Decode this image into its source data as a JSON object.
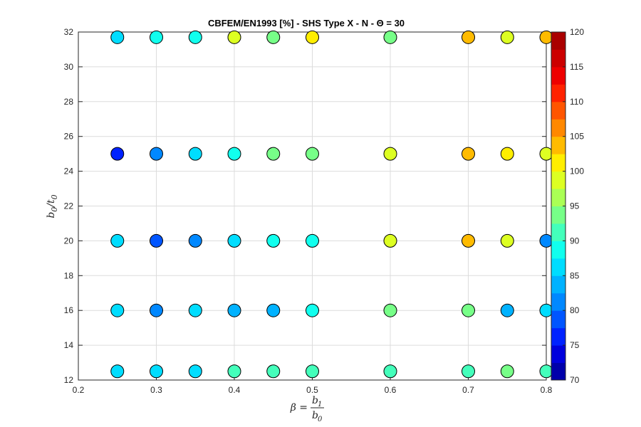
{
  "chart_data": {
    "type": "scatter",
    "title": "CBFEM/EN1993 [%] - SHS Type X - N - Θ = 30",
    "xlim": [
      0.2,
      0.8
    ],
    "ylim": [
      12,
      32
    ],
    "xticks": [
      "0.2",
      "0.3",
      "0.4",
      "0.5",
      "0.6",
      "0.7",
      "0.8"
    ],
    "yticks": [
      "12",
      "14",
      "16",
      "18",
      "20",
      "22",
      "24",
      "26",
      "28",
      "30",
      "32"
    ],
    "xlabel": {
      "prefix": "β = ",
      "num": "b",
      "num_sub": "1",
      "den": "b",
      "den_sub": "0"
    },
    "ylabel": {
      "base": "b",
      "base_sub": "0",
      "sep": "/",
      "div": "t",
      "div_sub": "0"
    },
    "grid": true,
    "colorbar": {
      "range": [
        70,
        120
      ],
      "step": 2.5,
      "ticks": [
        "70",
        "75",
        "80",
        "85",
        "90",
        "95",
        "100",
        "105",
        "110",
        "115",
        "120"
      ],
      "colors": [
        "#0000AA",
        "#0000DD",
        "#0022FF",
        "#0055FF",
        "#0088FF",
        "#00B2FF",
        "#00DDFF",
        "#11FFEE",
        "#44FFBB",
        "#77FF88",
        "#AAFF55",
        "#DDFF22",
        "#FFEE00",
        "#FFBB00",
        "#FF8800",
        "#FF5500",
        "#FF2200",
        "#EE0000",
        "#CC0000",
        "#AA0000"
      ]
    },
    "points": [
      {
        "x": 0.25,
        "y": 12.5,
        "value": 87
      },
      {
        "x": 0.3,
        "y": 12.5,
        "value": 87
      },
      {
        "x": 0.35,
        "y": 12.5,
        "value": 86
      },
      {
        "x": 0.4,
        "y": 12.5,
        "value": 90
      },
      {
        "x": 0.45,
        "y": 12.5,
        "value": 90
      },
      {
        "x": 0.5,
        "y": 12.5,
        "value": 90
      },
      {
        "x": 0.6,
        "y": 12.5,
        "value": 90
      },
      {
        "x": 0.7,
        "y": 12.5,
        "value": 90
      },
      {
        "x": 0.75,
        "y": 12.5,
        "value": 93
      },
      {
        "x": 0.8,
        "y": 12.5,
        "value": 90
      },
      {
        "x": 0.25,
        "y": 16,
        "value": 86
      },
      {
        "x": 0.3,
        "y": 16,
        "value": 82
      },
      {
        "x": 0.35,
        "y": 16,
        "value": 86
      },
      {
        "x": 0.4,
        "y": 16,
        "value": 84
      },
      {
        "x": 0.45,
        "y": 16,
        "value": 84
      },
      {
        "x": 0.5,
        "y": 16,
        "value": 88
      },
      {
        "x": 0.6,
        "y": 16,
        "value": 93
      },
      {
        "x": 0.7,
        "y": 16,
        "value": 94
      },
      {
        "x": 0.75,
        "y": 16,
        "value": 84
      },
      {
        "x": 0.8,
        "y": 16,
        "value": 86
      },
      {
        "x": 0.25,
        "y": 20,
        "value": 86
      },
      {
        "x": 0.3,
        "y": 20,
        "value": 78
      },
      {
        "x": 0.35,
        "y": 20,
        "value": 82
      },
      {
        "x": 0.4,
        "y": 20,
        "value": 86
      },
      {
        "x": 0.45,
        "y": 20,
        "value": 89
      },
      {
        "x": 0.5,
        "y": 20,
        "value": 89
      },
      {
        "x": 0.6,
        "y": 20,
        "value": 98
      },
      {
        "x": 0.7,
        "y": 20,
        "value": 104
      },
      {
        "x": 0.75,
        "y": 20,
        "value": 99
      },
      {
        "x": 0.8,
        "y": 20,
        "value": 81
      },
      {
        "x": 0.25,
        "y": 25,
        "value": 77
      },
      {
        "x": 0.3,
        "y": 25,
        "value": 82
      },
      {
        "x": 0.35,
        "y": 25,
        "value": 86
      },
      {
        "x": 0.4,
        "y": 25,
        "value": 89
      },
      {
        "x": 0.45,
        "y": 25,
        "value": 93
      },
      {
        "x": 0.5,
        "y": 25,
        "value": 93
      },
      {
        "x": 0.6,
        "y": 25,
        "value": 99
      },
      {
        "x": 0.7,
        "y": 25,
        "value": 104
      },
      {
        "x": 0.75,
        "y": 25,
        "value": 101
      },
      {
        "x": 0.8,
        "y": 25,
        "value": 98
      },
      {
        "x": 0.25,
        "y": 31.7,
        "value": 86
      },
      {
        "x": 0.3,
        "y": 31.7,
        "value": 89
      },
      {
        "x": 0.35,
        "y": 31.7,
        "value": 89
      },
      {
        "x": 0.4,
        "y": 31.7,
        "value": 98
      },
      {
        "x": 0.45,
        "y": 31.7,
        "value": 94
      },
      {
        "x": 0.5,
        "y": 31.7,
        "value": 101
      },
      {
        "x": 0.6,
        "y": 31.7,
        "value": 94
      },
      {
        "x": 0.7,
        "y": 31.7,
        "value": 104
      },
      {
        "x": 0.75,
        "y": 31.7,
        "value": 98
      },
      {
        "x": 0.8,
        "y": 31.7,
        "value": 104
      }
    ]
  }
}
